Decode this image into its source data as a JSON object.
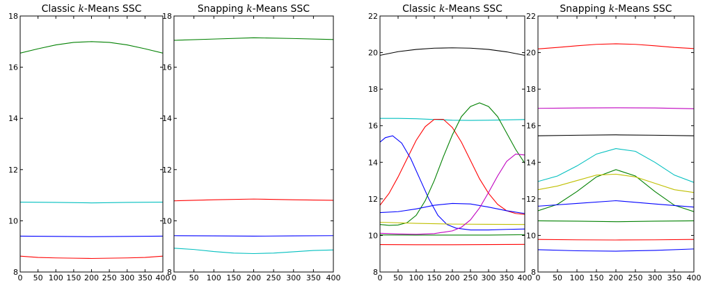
{
  "chart_data": [
    {
      "type": "line",
      "title": "Classic k-Means SSC",
      "xlim": [
        0,
        400
      ],
      "ylim": [
        8,
        18
      ],
      "xticks": [
        0,
        50,
        100,
        150,
        200,
        250,
        300,
        350,
        400
      ],
      "yticks": [
        8,
        10,
        12,
        14,
        16,
        18
      ],
      "grid": false,
      "series": [
        {
          "color": "#008000",
          "x": [
            0,
            50,
            100,
            150,
            200,
            250,
            300,
            350,
            400
          ],
          "values": [
            16.55,
            16.72,
            16.87,
            16.97,
            17.0,
            16.97,
            16.87,
            16.72,
            16.55
          ]
        },
        {
          "color": "#00bfbf",
          "x": [
            0,
            100,
            200,
            300,
            400
          ],
          "values": [
            10.73,
            10.72,
            10.7,
            10.72,
            10.73
          ]
        },
        {
          "color": "#0000ff",
          "x": [
            0,
            100,
            200,
            300,
            400
          ],
          "values": [
            9.4,
            9.39,
            9.38,
            9.39,
            9.4
          ]
        },
        {
          "color": "#ff0000",
          "x": [
            0,
            50,
            100,
            150,
            200,
            250,
            300,
            350,
            400
          ],
          "values": [
            8.62,
            8.57,
            8.55,
            8.54,
            8.53,
            8.54,
            8.55,
            8.57,
            8.62
          ]
        }
      ]
    },
    {
      "type": "line",
      "title": "Snapping k-Means SSC",
      "xlim": [
        0,
        400
      ],
      "ylim": [
        8,
        18
      ],
      "xticks": [
        0,
        50,
        100,
        150,
        200,
        250,
        300,
        350,
        400
      ],
      "yticks": [
        8,
        10,
        12,
        14,
        16,
        18
      ],
      "grid": false,
      "series": [
        {
          "color": "#008000",
          "x": [
            0,
            100,
            200,
            300,
            400
          ],
          "values": [
            17.05,
            17.1,
            17.15,
            17.12,
            17.08
          ]
        },
        {
          "color": "#ff0000",
          "x": [
            0,
            100,
            200,
            300,
            400
          ],
          "values": [
            10.78,
            10.82,
            10.85,
            10.82,
            10.8
          ]
        },
        {
          "color": "#0000ff",
          "x": [
            0,
            100,
            200,
            300,
            400
          ],
          "values": [
            9.42,
            9.41,
            9.4,
            9.41,
            9.42
          ]
        },
        {
          "color": "#00bfbf",
          "x": [
            0,
            50,
            100,
            150,
            200,
            250,
            300,
            350,
            400
          ],
          "values": [
            8.93,
            8.88,
            8.8,
            8.74,
            8.72,
            8.74,
            8.79,
            8.84,
            8.86
          ]
        }
      ]
    },
    {
      "type": "line",
      "title": "Classic k-Means SSC",
      "xlim": [
        0,
        400
      ],
      "ylim": [
        8,
        22
      ],
      "xticks": [
        0,
        50,
        100,
        150,
        200,
        250,
        300,
        350,
        400
      ],
      "yticks": [
        8,
        10,
        12,
        14,
        16,
        18,
        20,
        22
      ],
      "grid": false,
      "series": [
        {
          "color": "#000000",
          "x": [
            0,
            50,
            100,
            150,
            200,
            250,
            300,
            350,
            400
          ],
          "values": [
            19.85,
            20.05,
            20.17,
            20.24,
            20.26,
            20.24,
            20.17,
            20.04,
            19.85
          ]
        },
        {
          "color": "#00bfbf",
          "x": [
            0,
            50,
            100,
            150,
            200,
            250,
            300,
            350,
            400
          ],
          "values": [
            16.4,
            16.4,
            16.38,
            16.34,
            16.3,
            16.29,
            16.3,
            16.32,
            16.34
          ]
        },
        {
          "color": "#ff0000",
          "x": [
            0,
            25,
            50,
            75,
            100,
            125,
            150,
            175,
            200,
            225,
            250,
            275,
            300,
            325,
            350,
            375,
            400
          ],
          "values": [
            11.65,
            12.3,
            13.2,
            14.2,
            15.2,
            15.95,
            16.35,
            16.35,
            15.9,
            15.1,
            14.1,
            13.1,
            12.3,
            11.7,
            11.35,
            11.2,
            11.15
          ]
        },
        {
          "color": "#0000ff",
          "x": [
            0,
            15,
            35,
            60,
            85,
            110,
            135,
            160,
            185,
            210,
            250,
            300,
            350,
            400
          ],
          "values": [
            15.1,
            15.35,
            15.45,
            15.05,
            14.2,
            13.1,
            12.0,
            11.1,
            10.6,
            10.4,
            10.3,
            10.3,
            10.33,
            10.35
          ]
        },
        {
          "color": "#008000",
          "x": [
            0,
            25,
            50,
            75,
            100,
            125,
            150,
            175,
            200,
            225,
            250,
            275,
            300,
            325,
            350,
            375,
            400
          ],
          "values": [
            10.6,
            10.55,
            10.57,
            10.7,
            11.1,
            11.9,
            13.0,
            14.3,
            15.5,
            16.5,
            17.05,
            17.25,
            17.05,
            16.5,
            15.6,
            14.7,
            13.95
          ]
        },
        {
          "color": "#0000ff",
          "x": [
            0,
            50,
            100,
            150,
            200,
            250,
            300,
            350,
            400
          ],
          "values": [
            11.25,
            11.3,
            11.45,
            11.65,
            11.75,
            11.72,
            11.55,
            11.35,
            11.2
          ]
        },
        {
          "color": "#bfbf00",
          "x": [
            0,
            100,
            200,
            300,
            400
          ],
          "values": [
            10.72,
            10.66,
            10.62,
            10.61,
            10.6
          ]
        },
        {
          "color": "#bf00bf",
          "x": [
            0,
            50,
            100,
            150,
            200,
            225,
            250,
            275,
            300,
            325,
            350,
            375,
            400
          ],
          "values": [
            10.12,
            10.08,
            10.06,
            10.1,
            10.25,
            10.45,
            10.85,
            11.5,
            12.35,
            13.25,
            14.05,
            14.45,
            14.4
          ]
        },
        {
          "color": "#008000",
          "x": [
            0,
            100,
            200,
            300,
            400
          ],
          "values": [
            10.03,
            10.02,
            10.02,
            10.02,
            10.04
          ]
        },
        {
          "color": "#ff0000",
          "x": [
            0,
            100,
            200,
            300,
            400
          ],
          "values": [
            9.5,
            9.49,
            9.49,
            9.5,
            9.51
          ]
        }
      ]
    },
    {
      "type": "line",
      "title": "Snapping k-Means SSC",
      "xlim": [
        0,
        400
      ],
      "ylim": [
        8,
        22
      ],
      "xticks": [
        0,
        50,
        100,
        150,
        200,
        250,
        300,
        350,
        400
      ],
      "yticks": [
        8,
        10,
        12,
        14,
        16,
        18,
        20,
        22
      ],
      "grid": false,
      "series": [
        {
          "color": "#ff0000",
          "x": [
            0,
            50,
            100,
            150,
            200,
            250,
            300,
            350,
            400
          ],
          "values": [
            20.2,
            20.28,
            20.37,
            20.45,
            20.48,
            20.45,
            20.37,
            20.28,
            20.22
          ]
        },
        {
          "color": "#bf00bf",
          "x": [
            0,
            100,
            200,
            300,
            400
          ],
          "values": [
            16.95,
            16.97,
            16.98,
            16.97,
            16.93
          ]
        },
        {
          "color": "#000000",
          "x": [
            0,
            100,
            200,
            300,
            400
          ],
          "values": [
            15.45,
            15.48,
            15.5,
            15.48,
            15.45
          ]
        },
        {
          "color": "#00bfbf",
          "x": [
            0,
            50,
            100,
            150,
            200,
            250,
            300,
            350,
            400
          ],
          "values": [
            12.95,
            13.25,
            13.8,
            14.45,
            14.75,
            14.6,
            14.0,
            13.3,
            12.9
          ]
        },
        {
          "color": "#008000",
          "x": [
            0,
            50,
            100,
            150,
            200,
            250,
            300,
            350,
            400
          ],
          "values": [
            11.35,
            11.7,
            12.4,
            13.2,
            13.6,
            13.25,
            12.4,
            11.65,
            11.3
          ]
        },
        {
          "color": "#bfbf00",
          "x": [
            0,
            50,
            100,
            150,
            200,
            250,
            300,
            350,
            400
          ],
          "values": [
            12.5,
            12.7,
            13.0,
            13.3,
            13.35,
            13.2,
            12.85,
            12.5,
            12.35
          ]
        },
        {
          "color": "#0000ff",
          "x": [
            0,
            100,
            200,
            300,
            400
          ],
          "values": [
            11.6,
            11.75,
            11.9,
            11.72,
            11.55
          ]
        },
        {
          "color": "#008000",
          "x": [
            0,
            100,
            200,
            300,
            400
          ],
          "values": [
            10.8,
            10.78,
            10.75,
            10.78,
            10.8
          ]
        },
        {
          "color": "#ff0000",
          "x": [
            0,
            100,
            200,
            300,
            400
          ],
          "values": [
            9.78,
            9.76,
            9.75,
            9.76,
            9.78
          ]
        },
        {
          "color": "#0000ff",
          "x": [
            0,
            100,
            200,
            300,
            400
          ],
          "values": [
            9.22,
            9.16,
            9.14,
            9.18,
            9.26
          ]
        }
      ]
    }
  ]
}
